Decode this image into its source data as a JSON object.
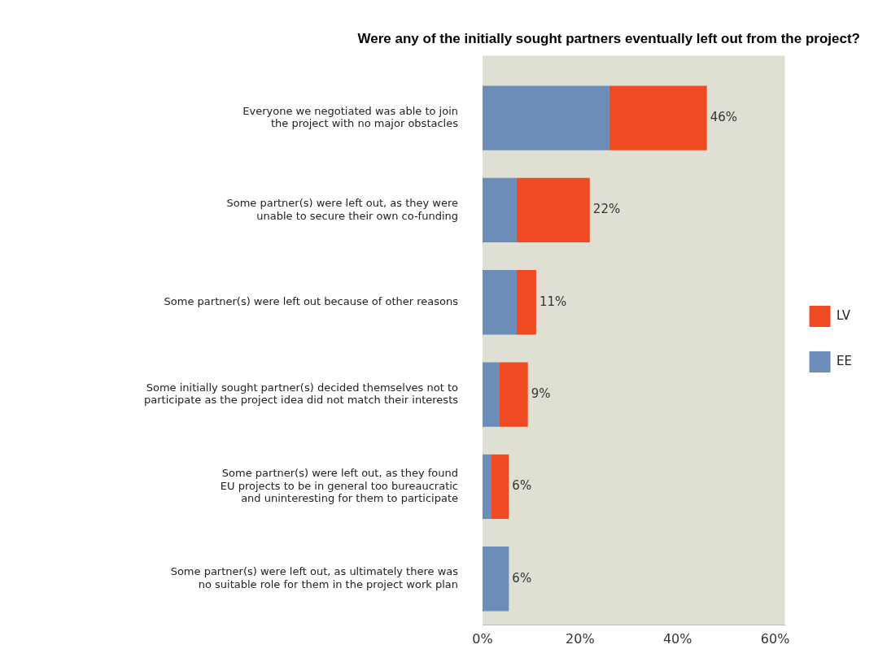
{
  "chart_data": {
    "type": "bar",
    "orientation": "horizontal",
    "stacked": true,
    "title": "Were any of the initially sought partners eventually left out from the project?",
    "categories": [
      "Everyone we negotiated was able to join\nthe project with no major obstacles",
      "Some partner(s) were left out, as they were\nunable to secure their own co-funding",
      "Some partner(s) were left out because of other reasons",
      "Some initially sought partner(s) decided themselves not to\nparticipate as the project idea did not match their interests",
      "Some partner(s) were left out, as they found\nEU projects to be in general too bureaucratic\nand uninteresting for them to participate",
      "Some partner(s) were left out, as ultimately there was\nno suitable role for them in the project work plan"
    ],
    "series": [
      {
        "name": "EE",
        "color": "#6b8db8",
        "values": [
          26,
          7,
          7,
          3.5,
          1.7,
          5.4
        ]
      },
      {
        "name": "LV",
        "color": "#f04a22",
        "values": [
          20,
          15,
          4,
          5.8,
          3.7,
          null
        ]
      }
    ],
    "totals": [
      "46%",
      "22%",
      "11%",
      "9%",
      "6%",
      "6%"
    ],
    "xlim": [
      0,
      62
    ],
    "xticks": [
      {
        "value": 0,
        "label": "0%"
      },
      {
        "value": 20,
        "label": "20%"
      },
      {
        "value": 40,
        "label": "40%"
      },
      {
        "value": 60,
        "label": "60%"
      }
    ],
    "legend": "right",
    "grid": false
  }
}
